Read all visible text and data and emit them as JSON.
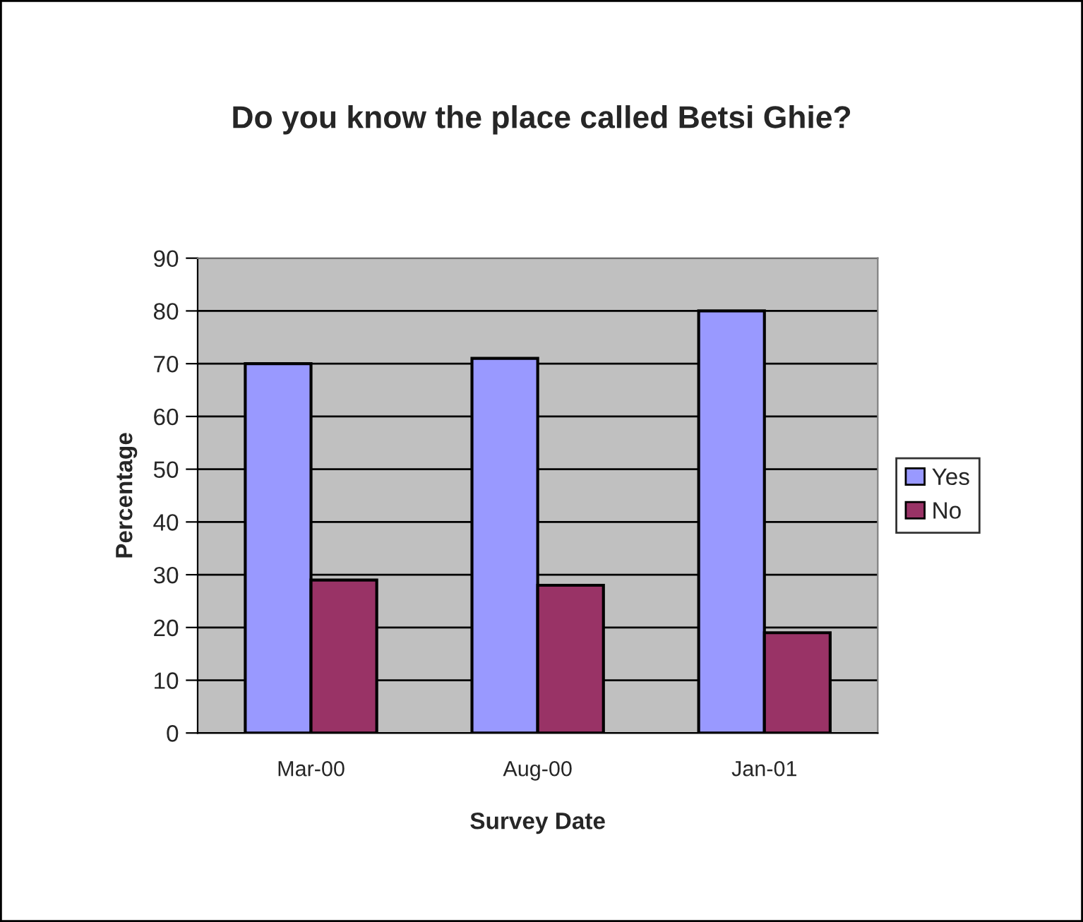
{
  "chart_data": {
    "type": "bar",
    "title": "Do you know the place called Betsi Ghie?",
    "xlabel": "Survey Date",
    "ylabel": "Percentage",
    "categories": [
      "Mar-00",
      "Aug-00",
      "Jan-01"
    ],
    "series": [
      {
        "name": "Yes",
        "color": "#9999ff",
        "values": [
          70,
          71,
          80
        ]
      },
      {
        "name": "No",
        "color": "#993366",
        "values": [
          29,
          28,
          19
        ]
      }
    ],
    "ylim": [
      0,
      90
    ],
    "yticks": [
      0,
      10,
      20,
      30,
      40,
      50,
      60,
      70,
      80,
      90
    ],
    "grid": "y",
    "legend": "right"
  }
}
